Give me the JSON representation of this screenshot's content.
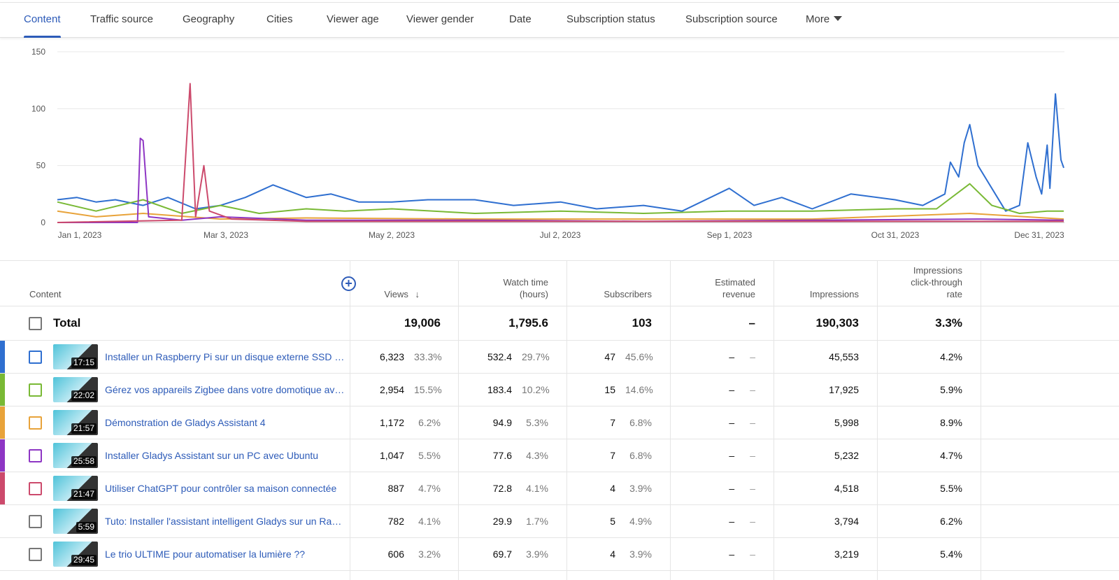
{
  "tabs": [
    {
      "label": "Content",
      "active": true
    },
    {
      "label": "Traffic source"
    },
    {
      "label": "Geography"
    },
    {
      "label": "Cities"
    },
    {
      "label": "Viewer age"
    },
    {
      "label": "Viewer gender"
    },
    {
      "label": "Date"
    },
    {
      "label": "Subscription status"
    },
    {
      "label": "Subscription source"
    },
    {
      "label": "More"
    }
  ],
  "chart_data": {
    "type": "line",
    "ylim": [
      0,
      150
    ],
    "yticks": [
      "0",
      "50",
      "100",
      "150"
    ],
    "xticks": [
      "Jan 1, 2023",
      "Mar 3, 2023",
      "May 2, 2023",
      "Jul 2, 2023",
      "Sep 1, 2023",
      "Oct 31, 2023",
      "Dec 31, 2023"
    ],
    "grid": true,
    "series": [
      {
        "color": "#2f6fd0",
        "points": [
          [
            "2023-01-01",
            20
          ],
          [
            "2023-01-08",
            22
          ],
          [
            "2023-01-15",
            18
          ],
          [
            "2023-01-22",
            20
          ],
          [
            "2023-02-01",
            15
          ],
          [
            "2023-02-10",
            22
          ],
          [
            "2023-02-20",
            12
          ],
          [
            "2023-03-01",
            15
          ],
          [
            "2023-03-10",
            22
          ],
          [
            "2023-03-20",
            33
          ],
          [
            "2023-04-01",
            22
          ],
          [
            "2023-04-10",
            25
          ],
          [
            "2023-04-20",
            18
          ],
          [
            "2023-05-02",
            18
          ],
          [
            "2023-05-15",
            20
          ],
          [
            "2023-06-01",
            20
          ],
          [
            "2023-06-15",
            15
          ],
          [
            "2023-07-02",
            18
          ],
          [
            "2023-07-15",
            12
          ],
          [
            "2023-08-01",
            15
          ],
          [
            "2023-08-15",
            10
          ],
          [
            "2023-09-01",
            30
          ],
          [
            "2023-09-10",
            15
          ],
          [
            "2023-09-20",
            22
          ],
          [
            "2023-10-01",
            12
          ],
          [
            "2023-10-15",
            25
          ],
          [
            "2023-10-31",
            20
          ],
          [
            "2023-11-10",
            15
          ],
          [
            "2023-11-18",
            25
          ],
          [
            "2023-11-20",
            53
          ],
          [
            "2023-11-23",
            40
          ],
          [
            "2023-11-25",
            70
          ],
          [
            "2023-11-27",
            86
          ],
          [
            "2023-11-30",
            50
          ],
          [
            "2023-12-05",
            30
          ],
          [
            "2023-12-10",
            10
          ],
          [
            "2023-12-15",
            15
          ],
          [
            "2023-12-18",
            70
          ],
          [
            "2023-12-21",
            40
          ],
          [
            "2023-12-23",
            25
          ],
          [
            "2023-12-25",
            68
          ],
          [
            "2023-12-26",
            30
          ],
          [
            "2023-12-28",
            113
          ],
          [
            "2023-12-30",
            55
          ],
          [
            "2023-12-31",
            48
          ]
        ]
      },
      {
        "color": "#79b935",
        "points": [
          [
            "2023-01-01",
            18
          ],
          [
            "2023-01-15",
            10
          ],
          [
            "2023-02-01",
            20
          ],
          [
            "2023-02-15",
            8
          ],
          [
            "2023-03-01",
            15
          ],
          [
            "2023-03-15",
            8
          ],
          [
            "2023-04-01",
            12
          ],
          [
            "2023-04-15",
            10
          ],
          [
            "2023-05-02",
            12
          ],
          [
            "2023-06-01",
            8
          ],
          [
            "2023-07-02",
            10
          ],
          [
            "2023-08-01",
            8
          ],
          [
            "2023-09-01",
            10
          ],
          [
            "2023-10-01",
            10
          ],
          [
            "2023-10-31",
            12
          ],
          [
            "2023-11-15",
            12
          ],
          [
            "2023-11-27",
            34
          ],
          [
            "2023-12-05",
            15
          ],
          [
            "2023-12-15",
            8
          ],
          [
            "2023-12-25",
            10
          ],
          [
            "2023-12-31",
            10
          ]
        ]
      },
      {
        "color": "#e8a33a",
        "points": [
          [
            "2023-01-01",
            10
          ],
          [
            "2023-01-15",
            5
          ],
          [
            "2023-02-01",
            8
          ],
          [
            "2023-03-01",
            3
          ],
          [
            "2023-04-01",
            4
          ],
          [
            "2023-06-01",
            3
          ],
          [
            "2023-08-01",
            3
          ],
          [
            "2023-10-01",
            3
          ],
          [
            "2023-11-27",
            8
          ],
          [
            "2023-12-31",
            3
          ]
        ]
      },
      {
        "color": "#8e36c4",
        "points": [
          [
            "2023-01-01",
            0
          ],
          [
            "2023-01-30",
            0
          ],
          [
            "2023-01-31",
            74
          ],
          [
            "2023-02-01",
            72
          ],
          [
            "2023-02-03",
            5
          ],
          [
            "2023-02-15",
            2
          ],
          [
            "2023-03-01",
            5
          ],
          [
            "2023-04-01",
            2
          ],
          [
            "2023-06-01",
            2
          ],
          [
            "2023-08-01",
            1
          ],
          [
            "2023-10-01",
            2
          ],
          [
            "2023-12-01",
            3
          ],
          [
            "2023-12-31",
            2
          ]
        ]
      },
      {
        "color": "#cc4a6c",
        "points": [
          [
            "2023-01-01",
            0
          ],
          [
            "2023-02-15",
            2
          ],
          [
            "2023-02-18",
            122
          ],
          [
            "2023-02-20",
            5
          ],
          [
            "2023-02-23",
            50
          ],
          [
            "2023-02-25",
            10
          ],
          [
            "2023-03-05",
            3
          ],
          [
            "2023-04-01",
            1
          ],
          [
            "2023-06-01",
            1
          ],
          [
            "2023-09-01",
            1
          ],
          [
            "2023-12-31",
            1
          ]
        ]
      }
    ]
  },
  "table": {
    "headers": {
      "content": "Content",
      "views": "Views",
      "watch_time": [
        "Watch time",
        "(hours)"
      ],
      "subscribers": "Subscribers",
      "revenue": [
        "Estimated",
        "revenue"
      ],
      "impressions": "Impressions",
      "ctr": [
        "Impressions",
        "click-through",
        "rate"
      ]
    },
    "total": {
      "label": "Total",
      "views": "19,006",
      "watch": "1,795.6",
      "subs": "103",
      "revenue": "–",
      "impressions": "190,303",
      "ctr": "3.3%"
    },
    "rows": [
      {
        "color": "#2f6fd0",
        "duration": "17:15",
        "title": "Installer un Raspberry Pi sur un disque externe SSD sa…",
        "views": "6,323",
        "views_pct": "33.3%",
        "watch": "532.4",
        "watch_pct": "29.7%",
        "subs": "47",
        "subs_pct": "45.6%",
        "revenue": "–",
        "revenue_pct": "–",
        "impressions": "45,553",
        "ctr": "4.2%"
      },
      {
        "color": "#79b935",
        "duration": "22:02",
        "title": "Gérez vos appareils Zigbee dans votre domotique avec…",
        "views": "2,954",
        "views_pct": "15.5%",
        "watch": "183.4",
        "watch_pct": "10.2%",
        "subs": "15",
        "subs_pct": "14.6%",
        "revenue": "–",
        "revenue_pct": "–",
        "impressions": "17,925",
        "ctr": "5.9%"
      },
      {
        "color": "#e8a33a",
        "duration": "21:57",
        "title": "Démonstration de Gladys Assistant 4",
        "views": "1,172",
        "views_pct": "6.2%",
        "watch": "94.9",
        "watch_pct": "5.3%",
        "subs": "7",
        "subs_pct": "6.8%",
        "revenue": "–",
        "revenue_pct": "–",
        "impressions": "5,998",
        "ctr": "8.9%"
      },
      {
        "color": "#8e36c4",
        "duration": "25:58",
        "title": "Installer Gladys Assistant sur un PC avec Ubuntu",
        "views": "1,047",
        "views_pct": "5.5%",
        "watch": "77.6",
        "watch_pct": "4.3%",
        "subs": "7",
        "subs_pct": "6.8%",
        "revenue": "–",
        "revenue_pct": "–",
        "impressions": "5,232",
        "ctr": "4.7%"
      },
      {
        "color": "#cc4a6c",
        "duration": "21:47",
        "title": "Utiliser ChatGPT pour contrôler sa maison connectée",
        "views": "887",
        "views_pct": "4.7%",
        "watch": "72.8",
        "watch_pct": "4.1%",
        "subs": "4",
        "subs_pct": "3.9%",
        "revenue": "–",
        "revenue_pct": "–",
        "impressions": "4,518",
        "ctr": "5.5%"
      },
      {
        "color": "",
        "duration": "5:59",
        "title": "Tuto: Installer l'assistant intelligent Gladys sur un Rasp…",
        "views": "782",
        "views_pct": "4.1%",
        "watch": "29.9",
        "watch_pct": "1.7%",
        "subs": "5",
        "subs_pct": "4.9%",
        "revenue": "–",
        "revenue_pct": "–",
        "impressions": "3,794",
        "ctr": "6.2%"
      },
      {
        "color": "",
        "duration": "29:45",
        "title": "Le trio ULTIME pour automatiser la lumière ??",
        "views": "606",
        "views_pct": "3.2%",
        "watch": "69.7",
        "watch_pct": "3.9%",
        "subs": "4",
        "subs_pct": "3.9%",
        "revenue": "–",
        "revenue_pct": "–",
        "impressions": "3,219",
        "ctr": "5.4%"
      }
    ]
  }
}
